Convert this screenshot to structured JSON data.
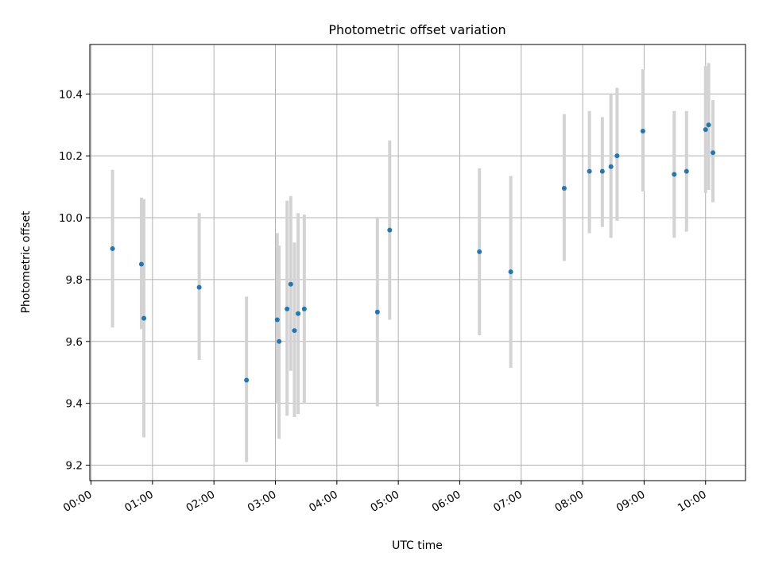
{
  "chart_data": {
    "type": "scatter",
    "title": "Photometric offset variation",
    "xlabel": "UTC time",
    "ylabel": "Photometric offset",
    "x_unit": "hour",
    "xlim": [
      -0.02,
      10.65
    ],
    "ylim": [
      9.15,
      10.56
    ],
    "x_ticks": [
      0,
      1,
      2,
      3,
      4,
      5,
      6,
      7,
      8,
      9,
      10
    ],
    "x_tick_labels": [
      "00:00",
      "01:00",
      "02:00",
      "03:00",
      "04:00",
      "05:00",
      "06:00",
      "07:00",
      "08:00",
      "09:00",
      "10:00"
    ],
    "y_ticks": [
      9.2,
      9.4,
      9.6,
      9.8,
      10.0,
      10.2,
      10.4
    ],
    "y_tick_labels": [
      "9.2",
      "9.4",
      "9.6",
      "9.8",
      "10.0",
      "10.2",
      "10.4"
    ],
    "grid": true,
    "marker_color": "#1f77b4",
    "errorbar_color": "#d3d3d3",
    "points": [
      {
        "x": 0.35,
        "y": 9.9,
        "err_low": 9.645,
        "err_high": 10.155
      },
      {
        "x": 0.82,
        "y": 9.85,
        "err_low": 9.64,
        "err_high": 10.065
      },
      {
        "x": 0.86,
        "y": 9.675,
        "err_low": 9.29,
        "err_high": 10.06
      },
      {
        "x": 1.76,
        "y": 9.775,
        "err_low": 9.54,
        "err_high": 10.015
      },
      {
        "x": 2.53,
        "y": 9.475,
        "err_low": 9.21,
        "err_high": 9.745
      },
      {
        "x": 3.03,
        "y": 9.67,
        "err_low": 9.4,
        "err_high": 9.95
      },
      {
        "x": 3.06,
        "y": 9.6,
        "err_low": 9.285,
        "err_high": 9.91
      },
      {
        "x": 3.19,
        "y": 9.705,
        "err_low": 9.36,
        "err_high": 10.055
      },
      {
        "x": 3.25,
        "y": 9.785,
        "err_low": 9.505,
        "err_high": 10.07
      },
      {
        "x": 3.31,
        "y": 9.635,
        "err_low": 9.355,
        "err_high": 9.92
      },
      {
        "x": 3.37,
        "y": 9.69,
        "err_low": 9.365,
        "err_high": 10.015
      },
      {
        "x": 3.47,
        "y": 9.705,
        "err_low": 9.4,
        "err_high": 10.01
      },
      {
        "x": 4.66,
        "y": 9.695,
        "err_low": 9.39,
        "err_high": 10.0
      },
      {
        "x": 4.86,
        "y": 9.96,
        "err_low": 9.67,
        "err_high": 10.25
      },
      {
        "x": 6.32,
        "y": 9.89,
        "err_low": 9.62,
        "err_high": 10.16
      },
      {
        "x": 6.83,
        "y": 9.825,
        "err_low": 9.515,
        "err_high": 10.135
      },
      {
        "x": 7.7,
        "y": 10.095,
        "err_low": 9.86,
        "err_high": 10.335
      },
      {
        "x": 8.11,
        "y": 10.15,
        "err_low": 9.95,
        "err_high": 10.345
      },
      {
        "x": 8.32,
        "y": 10.15,
        "err_low": 9.97,
        "err_high": 10.325
      },
      {
        "x": 8.46,
        "y": 10.165,
        "err_low": 9.935,
        "err_high": 10.4
      },
      {
        "x": 8.56,
        "y": 10.2,
        "err_low": 9.99,
        "err_high": 10.42
      },
      {
        "x": 8.98,
        "y": 10.28,
        "err_low": 10.085,
        "err_high": 10.48
      },
      {
        "x": 9.49,
        "y": 10.14,
        "err_low": 9.935,
        "err_high": 10.345
      },
      {
        "x": 9.69,
        "y": 10.15,
        "err_low": 9.955,
        "err_high": 10.345
      },
      {
        "x": 10.0,
        "y": 10.285,
        "err_low": 10.08,
        "err_high": 10.49
      },
      {
        "x": 10.05,
        "y": 10.3,
        "err_low": 10.09,
        "err_high": 10.5
      },
      {
        "x": 10.12,
        "y": 10.21,
        "err_low": 10.05,
        "err_high": 10.38
      }
    ]
  }
}
